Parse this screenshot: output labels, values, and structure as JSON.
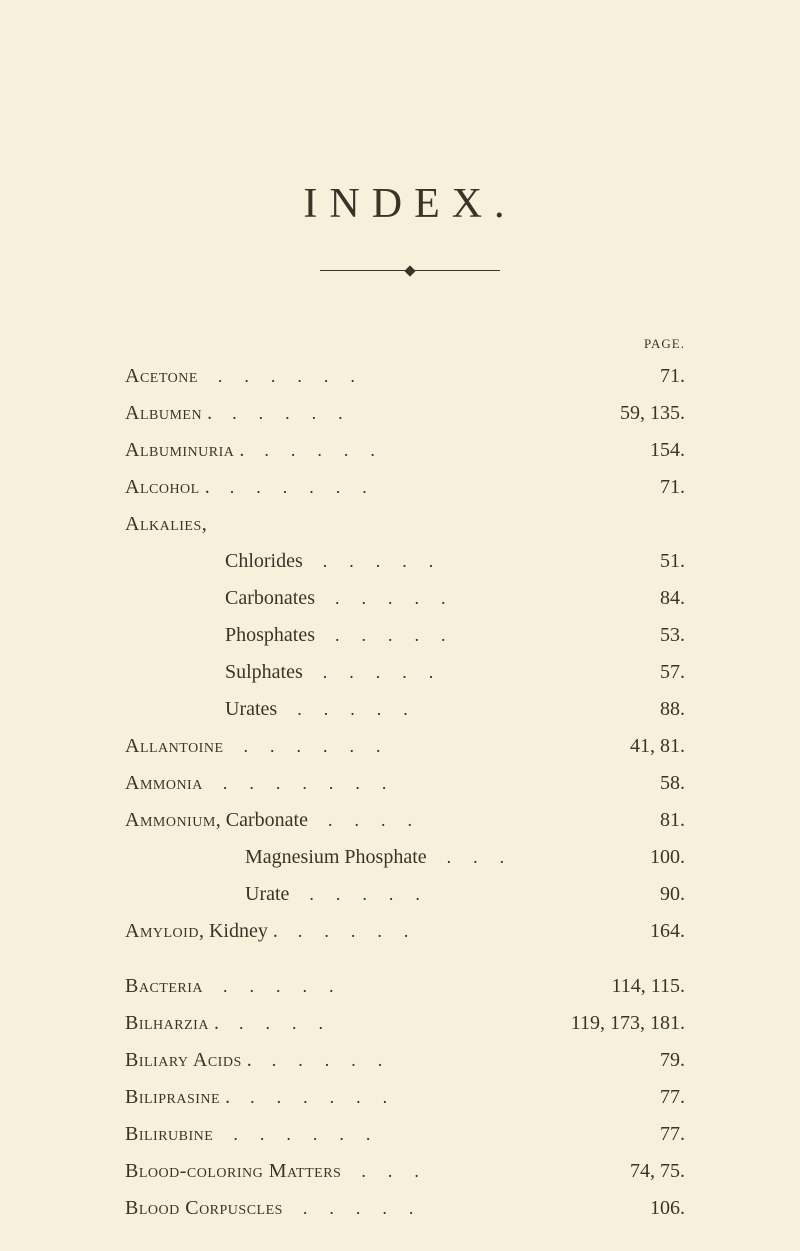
{
  "title": "INDEX.",
  "page_label": "PAGE.",
  "entries": [
    {
      "label_html": "<span class='sc'>Acetone</span>",
      "indent": 0,
      "dots": "......",
      "pages": "71."
    },
    {
      "label_html": "<span class='sc'>Albumen</span> .",
      "indent": 0,
      "dots": ".....",
      "pages": "59, 135."
    },
    {
      "label_html": "<span class='sc'>Albuminuria</span> .",
      "indent": 0,
      "dots": ".....",
      "pages": "154."
    },
    {
      "label_html": "<span class='sc'>Alcohol</span> .",
      "indent": 0,
      "dots": "......",
      "pages": "71."
    },
    {
      "label_html": "<span class='sc'>Alkalies</span>,",
      "indent": 0,
      "dots": "",
      "pages": ""
    },
    {
      "label_html": "Chlorides",
      "indent": 1,
      "dots": ".....",
      "pages": "51."
    },
    {
      "label_html": "Carbonates",
      "indent": 1,
      "dots": ".....",
      "pages": "84."
    },
    {
      "label_html": "Phosphates",
      "indent": 1,
      "dots": ".....",
      "pages": "53."
    },
    {
      "label_html": "Sulphates",
      "indent": 1,
      "dots": ".....",
      "pages": "57."
    },
    {
      "label_html": "Urates",
      "indent": 1,
      "dots": ".....",
      "pages": "88."
    },
    {
      "label_html": "<span class='sc'>Allantoine</span>",
      "indent": 0,
      "dots": "......",
      "pages": "41, 81."
    },
    {
      "label_html": "<span class='sc'>Ammonia</span>",
      "indent": 0,
      "dots": ".......",
      "pages": "58."
    },
    {
      "label_html": "<span class='sc'>Ammonium</span>, Carbonate",
      "indent": 0,
      "dots": "....",
      "pages": "81."
    },
    {
      "label_html": "Magnesium Phosphate",
      "indent": 2,
      "dots": "...",
      "pages": "100."
    },
    {
      "label_html": "Urate",
      "indent": 2,
      "dots": ".....",
      "pages": "90."
    },
    {
      "label_html": "<span class='sc'>Amyloid</span>, Kidney .",
      "indent": 0,
      "dots": ".....",
      "pages": "164."
    },
    {
      "gap": true
    },
    {
      "label_html": "<span class='sc'>Bacteria</span>",
      "indent": 0,
      "dots": ".....",
      "pages": "114, 115."
    },
    {
      "label_html": "<span class='sc'>Bilharzia</span> .",
      "indent": 0,
      "dots": "....",
      "pages": "119, 173, 181."
    },
    {
      "label_html": "<span class='sc'>Biliary Acids</span> .",
      "indent": 0,
      "dots": ".....",
      "pages": "79."
    },
    {
      "label_html": "<span class='sc'>Biliprasine</span> .",
      "indent": 0,
      "dots": "......",
      "pages": "77."
    },
    {
      "label_html": "<span class='sc'>Bilirubine</span>",
      "indent": 0,
      "dots": "......",
      "pages": "77."
    },
    {
      "label_html": "<span class='sc'>Blood-coloring Matters</span>",
      "indent": 0,
      "dots": "...",
      "pages": "74, 75."
    },
    {
      "label_html": "<span class='sc'>Blood Corpuscles</span>",
      "indent": 0,
      "dots": ".....",
      "pages": "106."
    }
  ]
}
